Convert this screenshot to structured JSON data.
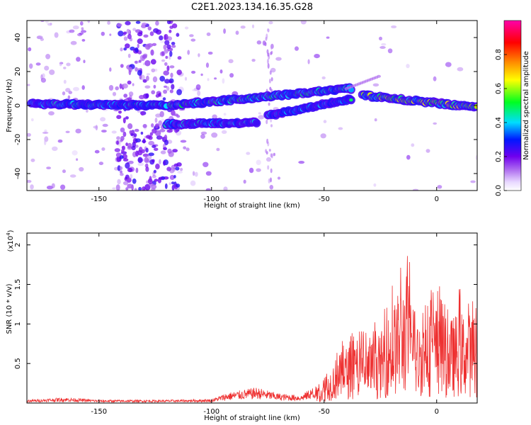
{
  "figure": {
    "title": "C2E1.2023.134.16.35.G28"
  },
  "chart_data": [
    {
      "type": "heatmap",
      "xlabel": "Height of straight line (km)",
      "ylabel": "Frequency (Hz)",
      "xlim": [
        -182,
        18
      ],
      "ylim": [
        -50,
        50
      ],
      "x_ticks": [
        -150,
        -100,
        -50,
        0
      ],
      "y_ticks": [
        -40,
        -20,
        0,
        20,
        40
      ],
      "colorbar": {
        "label": "Normalized spectral amplitude",
        "range": [
          0,
          1
        ],
        "ticks": [
          0.0,
          0.2,
          0.4,
          0.6,
          0.8
        ],
        "colormap": [
          "#ffffff",
          "#e8d8ff",
          "#b070f0",
          "#7000ee",
          "#0018ff",
          "#00ddff",
          "#00ff20",
          "#ffff00",
          "#ff9000",
          "#ff0000",
          "#ff00aa"
        ]
      },
      "features": [
        {
          "x_start": -180,
          "x_end": -120,
          "freq_start": 1,
          "freq_end": 0,
          "amplitude": 0.6
        },
        {
          "x_start": -118,
          "x_end": -38,
          "freq_start": 0,
          "freq_end": 10,
          "amplitude": 0.7
        },
        {
          "x_start": -120,
          "x_end": -80,
          "freq_start": -11,
          "freq_end": -10,
          "amplitude": 0.6
        },
        {
          "x_start": -75,
          "x_end": -38,
          "freq_start": -6,
          "freq_end": 4,
          "amplitude": 0.55
        },
        {
          "x_start": -33,
          "x_end": 18,
          "freq_start": 6,
          "freq_end": -1,
          "amplitude": 0.9
        }
      ]
    },
    {
      "type": "line",
      "xlabel": "Height of straight line (km)",
      "ylabel": "SNR (10 * v/v)",
      "y_multiplier": "(x10",
      "y_multiplier_exp": "4",
      "y_multiplier_close": ")",
      "xlim": [
        -182,
        18
      ],
      "ylim": [
        0,
        2.15
      ],
      "x_ticks": [
        -150,
        -100,
        -50,
        0
      ],
      "y_ticks": [
        0.5,
        1.0,
        1.5,
        2.0
      ],
      "series": [
        {
          "color": "#ee3030",
          "envelope": [
            {
              "x": -182,
              "y": 0.04
            },
            {
              "x": -165,
              "y": 0.07
            },
            {
              "x": -150,
              "y": 0.04
            },
            {
              "x": -120,
              "y": 0.04
            },
            {
              "x": -100,
              "y": 0.05
            },
            {
              "x": -93,
              "y": 0.13
            },
            {
              "x": -80,
              "y": 0.2
            },
            {
              "x": -70,
              "y": 0.12
            },
            {
              "x": -60,
              "y": 0.1
            },
            {
              "x": -50,
              "y": 0.32
            },
            {
              "x": -45,
              "y": 0.7
            },
            {
              "x": -40,
              "y": 0.9
            },
            {
              "x": -30,
              "y": 0.95
            },
            {
              "x": -25,
              "y": 1.1
            },
            {
              "x": -20,
              "y": 1.5
            },
            {
              "x": -13,
              "y": 2.1
            },
            {
              "x": -10,
              "y": 1.2
            },
            {
              "x": 0,
              "y": 1.55
            },
            {
              "x": 5,
              "y": 1.3
            },
            {
              "x": 10,
              "y": 1.45
            },
            {
              "x": 18,
              "y": 1.4
            }
          ]
        }
      ]
    }
  ]
}
